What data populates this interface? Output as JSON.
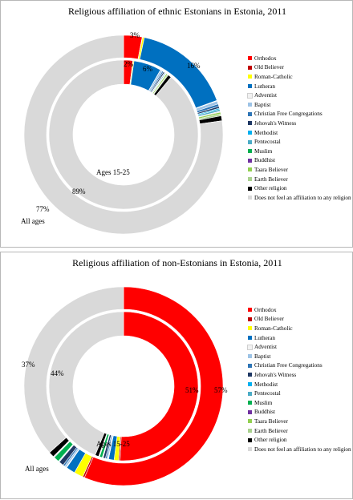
{
  "legend": [
    {
      "name": "Orthodox",
      "color": "#ff0000"
    },
    {
      "name": "Old Believer",
      "color": "#c00000"
    },
    {
      "name": "Roman-Catholic",
      "color": "#ffff00"
    },
    {
      "name": "Lutheran",
      "color": "#0070c0"
    },
    {
      "name": "Adventist",
      "color": "#f2f2f2"
    },
    {
      "name": "Baptist",
      "color": "#9dc3e6"
    },
    {
      "name": "Christian Free Congregations",
      "color": "#2e75b6"
    },
    {
      "name": "Jehovah's Witness",
      "color": "#1f3864"
    },
    {
      "name": "Methodist",
      "color": "#00b0f0"
    },
    {
      "name": "Pentecostal",
      "color": "#4bacc6"
    },
    {
      "name": "Muslim",
      "color": "#00b050"
    },
    {
      "name": "Buddhist",
      "color": "#7030a0"
    },
    {
      "name": "Taara Believer",
      "color": "#92d050"
    },
    {
      "name": "Earth Believer",
      "color": "#a9d18e"
    },
    {
      "name": "Other religion",
      "color": "#000000"
    },
    {
      "name": "Does not feel an affiliation to any religion",
      "color": "#d9d9d9"
    }
  ],
  "chart_data": [
    {
      "type": "pie",
      "title": "Religious affiliation of ethnic Estonians in Estonia, 2011",
      "categories": [
        "Orthodox",
        "Old Believer",
        "Roman-Catholic",
        "Lutheran",
        "Adventist",
        "Baptist",
        "Christian Free Congregations",
        "Jehovah's Witness",
        "Methodist",
        "Pentecostal",
        "Muslim",
        "Buddhist",
        "Taara Believer",
        "Earth Believer",
        "Other religion",
        "Does not feel an affiliation to any religion"
      ],
      "series": [
        {
          "name": "All ages",
          "values": [
            3,
            0.05,
            0.3,
            16,
            0.1,
            0.5,
            0.4,
            0.3,
            0.2,
            0.3,
            0.05,
            0.1,
            0.3,
            0.3,
            0.8,
            77
          ]
        },
        {
          "name": "Ages 15-25",
          "values": [
            2,
            0.05,
            0.2,
            6,
            0.05,
            0.4,
            0.3,
            0.3,
            0.1,
            0.2,
            0.05,
            0.1,
            0.3,
            0.2,
            0.75,
            89
          ]
        }
      ],
      "labels": {
        "outer": [
          "3%",
          "16%",
          "77%"
        ],
        "inner": [
          "2%",
          "6%",
          "89%"
        ],
        "outer_series": "All ages",
        "inner_series": "Ages 15-25"
      },
      "legend": "right"
    },
    {
      "type": "pie",
      "title": "Religious  affiliation of non-Estonians in Estonia, 2011",
      "categories": [
        "Orthodox",
        "Old Believer",
        "Roman-Catholic",
        "Lutheran",
        "Adventist",
        "Baptist",
        "Christian Free Congregations",
        "Jehovah's Witness",
        "Methodist",
        "Pentecostal",
        "Muslim",
        "Buddhist",
        "Taara Believer",
        "Earth Believer",
        "Other religion",
        "Does not feel an affiliation to any religion"
      ],
      "series": [
        {
          "name": "All ages",
          "values": [
            57,
            0.3,
            1.5,
            1.5,
            0.1,
            0.3,
            0.3,
            0.8,
            0.1,
            0.1,
            0.9,
            0.1,
            0.05,
            0.05,
            0.9,
            37
          ]
        },
        {
          "name": "Ages 15-25",
          "values": [
            51,
            0.3,
            1,
            1.2,
            0.1,
            0.3,
            0.3,
            0.5,
            0.1,
            0.1,
            0.6,
            0.1,
            0.05,
            0.05,
            0.8,
            44
          ]
        }
      ],
      "labels": {
        "outer": [
          "57%",
          "37%"
        ],
        "inner": [
          "51%",
          "44%"
        ],
        "outer_series": "All ages",
        "inner_series": "Ages 15-25"
      },
      "legend": "right"
    }
  ]
}
